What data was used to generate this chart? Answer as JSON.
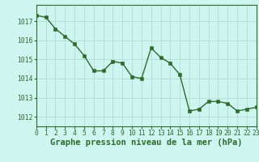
{
  "x": [
    0,
    1,
    2,
    3,
    4,
    5,
    6,
    7,
    8,
    9,
    10,
    11,
    12,
    13,
    14,
    15,
    16,
    17,
    18,
    19,
    20,
    21,
    22,
    23
  ],
  "y": [
    1017.3,
    1017.2,
    1016.6,
    1016.2,
    1015.8,
    1015.2,
    1014.4,
    1014.4,
    1014.9,
    1014.8,
    1014.1,
    1014.0,
    1015.6,
    1015.1,
    1014.8,
    1014.2,
    1012.3,
    1012.4,
    1012.8,
    1012.8,
    1012.7,
    1012.3,
    1012.4,
    1012.5
  ],
  "line_color": "#2d6a2d",
  "marker_color": "#2d6a2d",
  "bg_color": "#cef5f0",
  "grid_color": "#b0ddd0",
  "axis_color": "#2d6a2d",
  "xlabel": "Graphe pression niveau de la mer (hPa)",
  "xlabel_color": "#2d6a2d",
  "ylim": [
    1011.5,
    1017.85
  ],
  "yticks": [
    1012,
    1013,
    1014,
    1015,
    1016,
    1017
  ],
  "xticks": [
    0,
    1,
    2,
    3,
    4,
    5,
    6,
    7,
    8,
    9,
    10,
    11,
    12,
    13,
    14,
    15,
    16,
    17,
    18,
    19,
    20,
    21,
    22,
    23
  ],
  "tick_fontsize": 5.8,
  "xlabel_fontsize": 7.5,
  "line_width": 1.0,
  "marker_size": 2.5
}
